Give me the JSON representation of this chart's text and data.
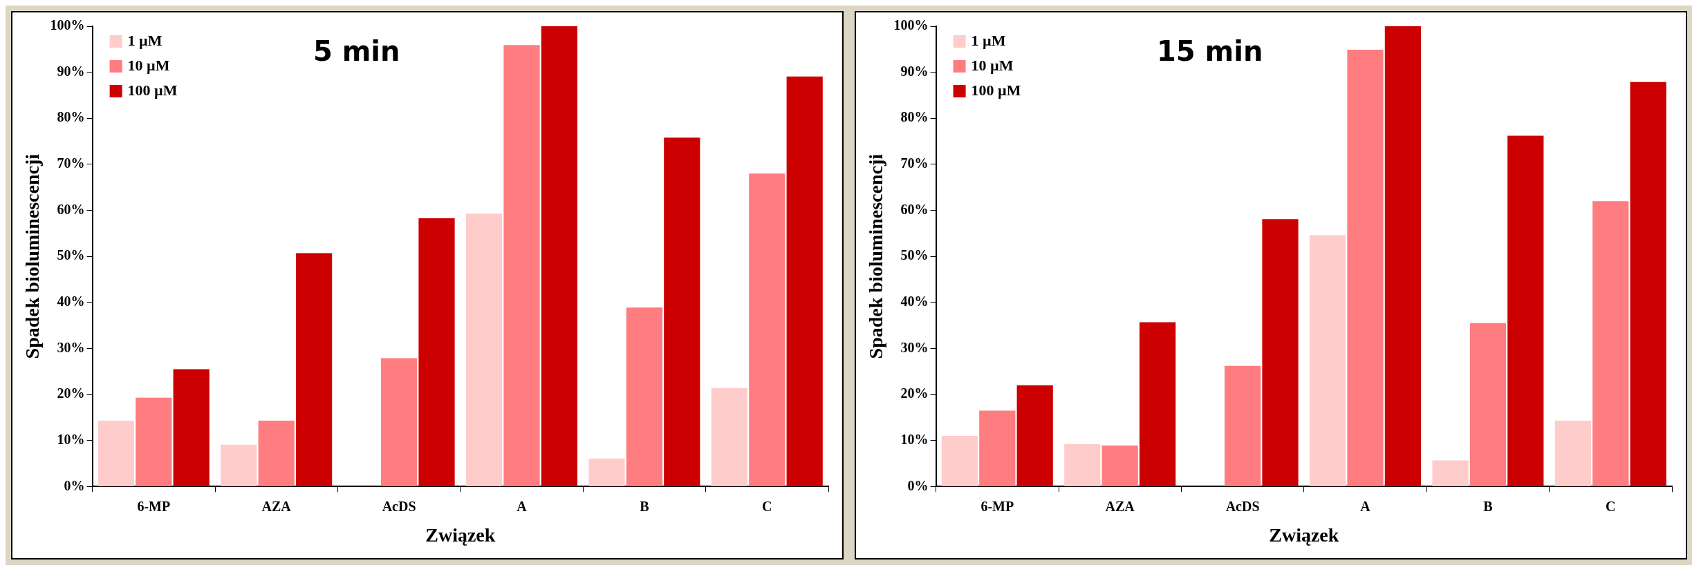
{
  "chart_data": [
    {
      "type": "bar",
      "title": "5 min",
      "xlabel": "Związek",
      "ylabel": "Spadek bioluminescencji",
      "categories": [
        "6-MP",
        "AZA",
        "AcDS",
        "A",
        "B",
        "C"
      ],
      "series": [
        {
          "name": "1 µM",
          "color": "#ffcccc",
          "values": [
            14.3,
            9.1,
            0,
            59.3,
            6.1,
            21.4
          ]
        },
        {
          "name": "10 µM",
          "color": "#ff7c80",
          "values": [
            19.3,
            14.3,
            27.9,
            95.9,
            38.9,
            68.0
          ]
        },
        {
          "name": "100 µM",
          "color": "#cc0000",
          "values": [
            25.5,
            50.7,
            58.3,
            100,
            75.8,
            89.1
          ]
        }
      ],
      "ylim": [
        0,
        100
      ],
      "yticks": [
        {
          "value": 0,
          "label": "0%"
        },
        {
          "value": 10,
          "label": "10%"
        },
        {
          "value": 20,
          "label": "20%"
        },
        {
          "value": 30,
          "label": "30%"
        },
        {
          "value": 40,
          "label": "40%"
        },
        {
          "value": 50,
          "label": "50%"
        },
        {
          "value": 60,
          "label": "60%"
        },
        {
          "value": 70,
          "label": "70%"
        },
        {
          "value": 80,
          "label": "80%"
        },
        {
          "value": 90,
          "label": "90%"
        },
        {
          "value": 100,
          "label": "100%"
        }
      ],
      "grid": false,
      "legend": "top left"
    },
    {
      "type": "bar",
      "title": "15 min",
      "xlabel": "Związek",
      "ylabel": "Spadek bioluminescencji",
      "categories": [
        "6-MP",
        "AZA",
        "AcDS",
        "A",
        "B",
        "C"
      ],
      "series": [
        {
          "name": "1 µM",
          "color": "#ffcccc",
          "values": [
            11.0,
            9.2,
            0,
            54.6,
            5.7,
            14.3
          ]
        },
        {
          "name": "10 µM",
          "color": "#ff7c80",
          "values": [
            16.5,
            8.9,
            26.2,
            94.9,
            35.5,
            62.0
          ]
        },
        {
          "name": "100 µM",
          "color": "#cc0000",
          "values": [
            22.0,
            35.7,
            58.1,
            100,
            76.2,
            87.9
          ]
        }
      ],
      "ylim": [
        0,
        100
      ],
      "yticks": [
        {
          "value": 0,
          "label": "0%"
        },
        {
          "value": 10,
          "label": "10%"
        },
        {
          "value": 20,
          "label": "20%"
        },
        {
          "value": 30,
          "label": "30%"
        },
        {
          "value": 40,
          "label": "40%"
        },
        {
          "value": 50,
          "label": "50%"
        },
        {
          "value": 60,
          "label": "60%"
        },
        {
          "value": 70,
          "label": "70%"
        },
        {
          "value": 80,
          "label": "80%"
        },
        {
          "value": 90,
          "label": "90%"
        },
        {
          "value": 100,
          "label": "100%"
        }
      ],
      "grid": false,
      "legend": "top left"
    }
  ]
}
